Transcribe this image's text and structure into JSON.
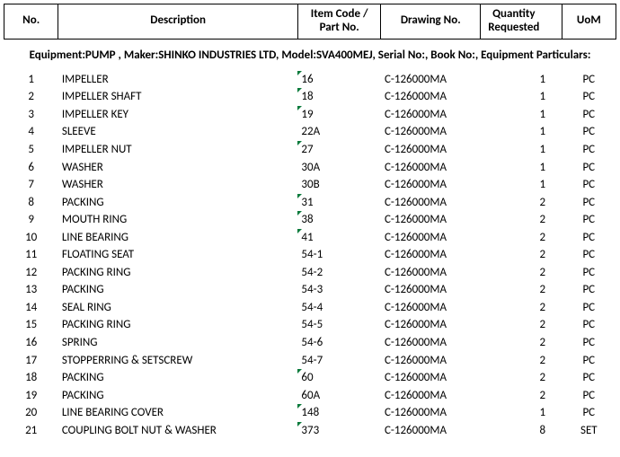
{
  "headers": {
    "no": "No.",
    "description": "Description",
    "item_code": "Item Code / Part No.",
    "drawing": "Drawing No.",
    "qty": "Quantity Requested",
    "uom": "UoM"
  },
  "equipment_line": "Equipment:PUMP , Maker:SHINKO INDUSTRIES LTD, Model:SVA400MEJ, Serial No:, Book No:, Equipment Particulars:",
  "flag_color": "#0a7a3b",
  "rows": [
    {
      "no": "1",
      "desc": "IMPELLER",
      "item": "16",
      "flag": true,
      "draw": "C-126000MA",
      "qty": "1",
      "uom": "PC"
    },
    {
      "no": "2",
      "desc": "IMPELLER SHAFT",
      "item": "18",
      "flag": true,
      "draw": "C-126000MA",
      "qty": "1",
      "uom": "PC"
    },
    {
      "no": "3",
      "desc": "IMPELLER KEY",
      "item": "19",
      "flag": true,
      "draw": "C-126000MA",
      "qty": "1",
      "uom": "PC"
    },
    {
      "no": "4",
      "desc": "SLEEVE",
      "item": "22A",
      "flag": false,
      "draw": "C-126000MA",
      "qty": "1",
      "uom": "PC"
    },
    {
      "no": "5",
      "desc": "IMPELLER NUT",
      "item": "27",
      "flag": true,
      "draw": "C-126000MA",
      "qty": "1",
      "uom": "PC"
    },
    {
      "no": "6",
      "desc": "WASHER",
      "item": "30A",
      "flag": false,
      "draw": "C-126000MA",
      "qty": "1",
      "uom": "PC"
    },
    {
      "no": "7",
      "desc": "WASHER",
      "item": "30B",
      "flag": false,
      "draw": "C-126000MA",
      "qty": "1",
      "uom": "PC"
    },
    {
      "no": "8",
      "desc": "PACKING",
      "item": "31",
      "flag": true,
      "draw": "C-126000MA",
      "qty": "2",
      "uom": "PC"
    },
    {
      "no": "9",
      "desc": "MOUTH RING",
      "item": "38",
      "flag": true,
      "draw": "C-126000MA",
      "qty": "2",
      "uom": "PC"
    },
    {
      "no": "10",
      "desc": "LINE BEARING",
      "item": "41",
      "flag": true,
      "draw": "C-126000MA",
      "qty": "2",
      "uom": "PC"
    },
    {
      "no": "11",
      "desc": "FLOATING SEAT",
      "item": "54-1",
      "flag": false,
      "draw": "C-126000MA",
      "qty": "2",
      "uom": "PC"
    },
    {
      "no": "12",
      "desc": "PACKING RING",
      "item": "54-2",
      "flag": false,
      "draw": "C-126000MA",
      "qty": "2",
      "uom": "PC"
    },
    {
      "no": "13",
      "desc": "PACKING",
      "item": "54-3",
      "flag": false,
      "draw": "C-126000MA",
      "qty": "2",
      "uom": "PC"
    },
    {
      "no": "14",
      "desc": "SEAL RING",
      "item": "54-4",
      "flag": false,
      "draw": "C-126000MA",
      "qty": "2",
      "uom": "PC"
    },
    {
      "no": "15",
      "desc": "PACKING RING",
      "item": "54-5",
      "flag": false,
      "draw": "C-126000MA",
      "qty": "2",
      "uom": "PC"
    },
    {
      "no": "16",
      "desc": "SPRING",
      "item": "54-6",
      "flag": false,
      "draw": "C-126000MA",
      "qty": "2",
      "uom": "PC"
    },
    {
      "no": "17",
      "desc": "STOPPERRING & SETSCREW",
      "item": "54-7",
      "flag": false,
      "draw": "C-126000MA",
      "qty": "2",
      "uom": "PC"
    },
    {
      "no": "18",
      "desc": "PACKING",
      "item": "60",
      "flag": true,
      "draw": "C-126000MA",
      "qty": "2",
      "uom": "PC"
    },
    {
      "no": "19",
      "desc": "PACKING",
      "item": "60A",
      "flag": false,
      "draw": "C-126000MA",
      "qty": "2",
      "uom": "PC"
    },
    {
      "no": "20",
      "desc": "LINE BEARING COVER",
      "item": "148",
      "flag": true,
      "draw": "C-126000MA",
      "qty": "1",
      "uom": "PC"
    },
    {
      "no": "21",
      "desc": "COUPLING BOLT NUT & WASHER",
      "item": "373",
      "flag": true,
      "draw": "C-126000MA",
      "qty": "8",
      "uom": "SET"
    }
  ]
}
